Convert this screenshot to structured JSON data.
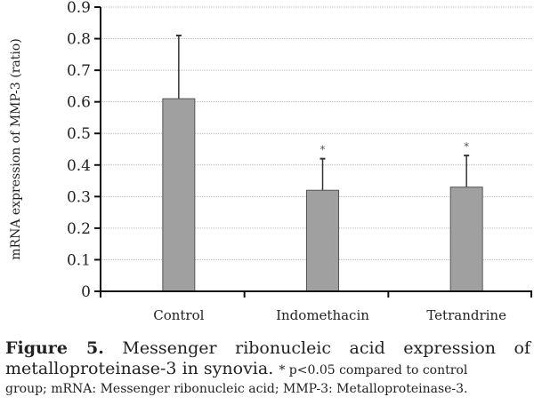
{
  "chart_data": {
    "type": "bar",
    "title": "",
    "xlabel": "",
    "ylabel": "mRNA expression of MMP-3 (ratio)",
    "ylim": [
      0,
      0.9
    ],
    "yticks": [
      0,
      0.1,
      0.2,
      0.3,
      0.4,
      0.5,
      0.6,
      0.7,
      0.8,
      0.9
    ],
    "ytick_labels": [
      "0",
      "0.1",
      "0.2",
      "0.3",
      "0.4",
      "0.5",
      "0.6",
      "0.7",
      "0.8",
      "0.9"
    ],
    "grid": true,
    "categories": [
      "Control",
      "Indomethacin",
      "Tetrandrine"
    ],
    "values": [
      0.61,
      0.32,
      0.33
    ],
    "error_upper": [
      0.81,
      0.42,
      0.43
    ],
    "annotations": [
      "",
      "*",
      "*"
    ],
    "bar_color": "#a0a0a0",
    "legend": "none"
  },
  "caption": {
    "label": "Figure 5.",
    "line1": "Messenger ribonucleic acid expression of",
    "line2_main": "metalloproteinase-3 in synovia.",
    "line2_note": "* p<0.05 compared to control",
    "line3": "group; mRNA: Messenger ribonucleic acid; MMP-3: Metalloproteinase-3."
  }
}
